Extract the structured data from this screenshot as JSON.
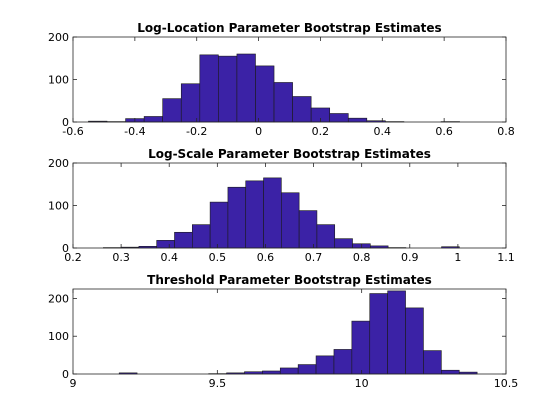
{
  "chart_data": [
    {
      "type": "bar",
      "title": "Log-Location Parameter Bootstrap Estimates",
      "xlim": [
        -0.6,
        0.8
      ],
      "ylim": [
        0,
        200
      ],
      "xticks": [
        -0.6,
        -0.4,
        -0.2,
        0,
        0.2,
        0.4,
        0.6,
        0.8
      ],
      "xtick_labels": [
        "-0.6",
        "-0.4",
        "-0.2",
        "0",
        "0.2",
        "0.4",
        "0.6",
        "0.8"
      ],
      "yticks": [
        0,
        100,
        200
      ],
      "ytick_labels": [
        "0",
        "100",
        "200"
      ],
      "grid": false,
      "bin_edges": [
        -0.55,
        -0.49,
        -0.43,
        -0.37,
        -0.31,
        -0.25,
        -0.19,
        -0.13,
        -0.07,
        -0.01,
        0.05,
        0.11,
        0.17,
        0.23,
        0.29,
        0.35,
        0.41,
        0.47,
        0.53,
        0.59,
        0.65,
        0.71
      ],
      "values": [
        2,
        1,
        8,
        13,
        55,
        90,
        158,
        155,
        160,
        132,
        93,
        60,
        33,
        20,
        9,
        3,
        1,
        0,
        0,
        1,
        0
      ]
    },
    {
      "type": "bar",
      "title": "Log-Scale Parameter Bootstrap Estimates",
      "xlim": [
        0.2,
        1.1
      ],
      "ylim": [
        0,
        200
      ],
      "xticks": [
        0.2,
        0.3,
        0.4,
        0.5,
        0.6,
        0.7,
        0.8,
        0.9,
        1,
        1.1
      ],
      "xtick_labels": [
        "0.2",
        "0.3",
        "0.4",
        "0.5",
        "0.6",
        "0.7",
        "0.8",
        "0.9",
        "1",
        "1.1"
      ],
      "yticks": [
        0,
        100,
        200
      ],
      "ytick_labels": [
        "0",
        "100",
        "200"
      ],
      "grid": false,
      "bin_edges": [
        0.263,
        0.3,
        0.337,
        0.374,
        0.411,
        0.448,
        0.485,
        0.522,
        0.559,
        0.596,
        0.633,
        0.67,
        0.707,
        0.744,
        0.781,
        0.818,
        0.855,
        0.892,
        0.929,
        0.966,
        1.003,
        1.04
      ],
      "values": [
        1,
        2,
        4,
        18,
        37,
        55,
        108,
        143,
        158,
        165,
        130,
        88,
        55,
        22,
        10,
        5,
        1,
        0,
        0,
        3,
        0
      ]
    },
    {
      "type": "bar",
      "title": "Threshold Parameter Bootstrap Estimates",
      "xlim": [
        9,
        10.5
      ],
      "ylim": [
        0,
        225
      ],
      "xticks": [
        9,
        9.5,
        10,
        10.5
      ],
      "xtick_labels": [
        "9",
        "9.5",
        "10",
        "10.5"
      ],
      "yticks": [
        0,
        100,
        200
      ],
      "ytick_labels": [
        "0",
        "100",
        "200"
      ],
      "grid": false,
      "bin_edges": [
        9.16,
        9.222,
        9.284,
        9.346,
        9.408,
        9.47,
        9.532,
        9.594,
        9.656,
        9.718,
        9.78,
        9.842,
        9.904,
        9.966,
        10.028,
        10.09,
        10.152,
        10.214,
        10.276,
        10.338,
        10.4,
        10.462
      ],
      "values": [
        3,
        0,
        0,
        0,
        0,
        1,
        3,
        6,
        8,
        16,
        25,
        48,
        65,
        140,
        213,
        220,
        175,
        62,
        10,
        5,
        0
      ]
    }
  ],
  "colors": {
    "bar_fill": "#3b22a6",
    "bar_edge": "#1a1a1a",
    "axis": "#262626",
    "background": "#ffffff"
  }
}
